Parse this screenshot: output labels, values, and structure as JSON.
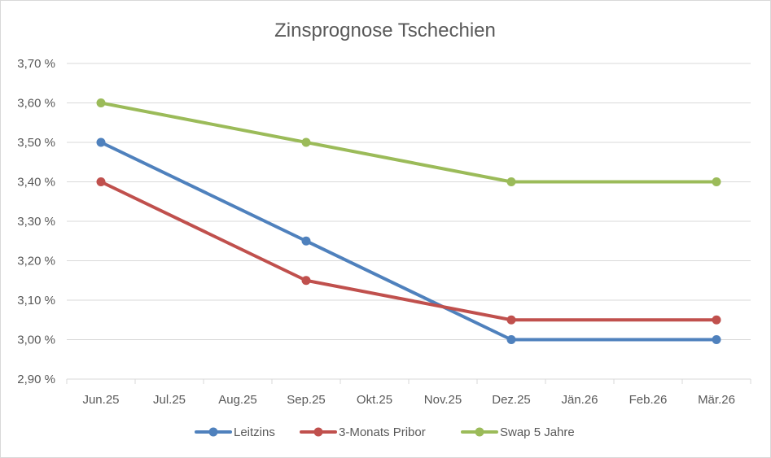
{
  "chart_data": {
    "type": "line",
    "title": "Zinsprognose Tschechien",
    "xlabel": "",
    "ylabel": "",
    "categories": [
      "Jun.25",
      "Jul.25",
      "Aug.25",
      "Sep.25",
      "Okt.25",
      "Nov.25",
      "Dez.25",
      "Jän.26",
      "Feb.26",
      "Mär.26"
    ],
    "y_ticks": [
      2.9,
      3.0,
      3.1,
      3.2,
      3.3,
      3.4,
      3.5,
      3.6,
      3.7
    ],
    "y_tick_labels": [
      "2,90 %",
      "3,00 %",
      "3,10 %",
      "3,20 %",
      "3,30 %",
      "3,40 %",
      "3,50 %",
      "3,60 %",
      "3,70 %"
    ],
    "ylim": [
      2.9,
      3.7
    ],
    "grid": true,
    "legend_position": "bottom",
    "series": [
      {
        "name": "Leitzins",
        "color": "#4f81bd",
        "points": [
          {
            "x": "Jun.25",
            "y": 3.5
          },
          {
            "x": "Sep.25",
            "y": 3.25
          },
          {
            "x": "Dez.25",
            "y": 3.0
          },
          {
            "x": "Mär.26",
            "y": 3.0
          }
        ]
      },
      {
        "name": "3-Monats Pribor",
        "color": "#c0504d",
        "points": [
          {
            "x": "Jun.25",
            "y": 3.4
          },
          {
            "x": "Sep.25",
            "y": 3.15
          },
          {
            "x": "Dez.25",
            "y": 3.05
          },
          {
            "x": "Mär.26",
            "y": 3.05
          }
        ]
      },
      {
        "name": "Swap 5 Jahre",
        "color": "#9bbb59",
        "points": [
          {
            "x": "Jun.25",
            "y": 3.6
          },
          {
            "x": "Sep.25",
            "y": 3.5
          },
          {
            "x": "Dez.25",
            "y": 3.4
          },
          {
            "x": "Mär.26",
            "y": 3.4
          }
        ]
      }
    ]
  }
}
